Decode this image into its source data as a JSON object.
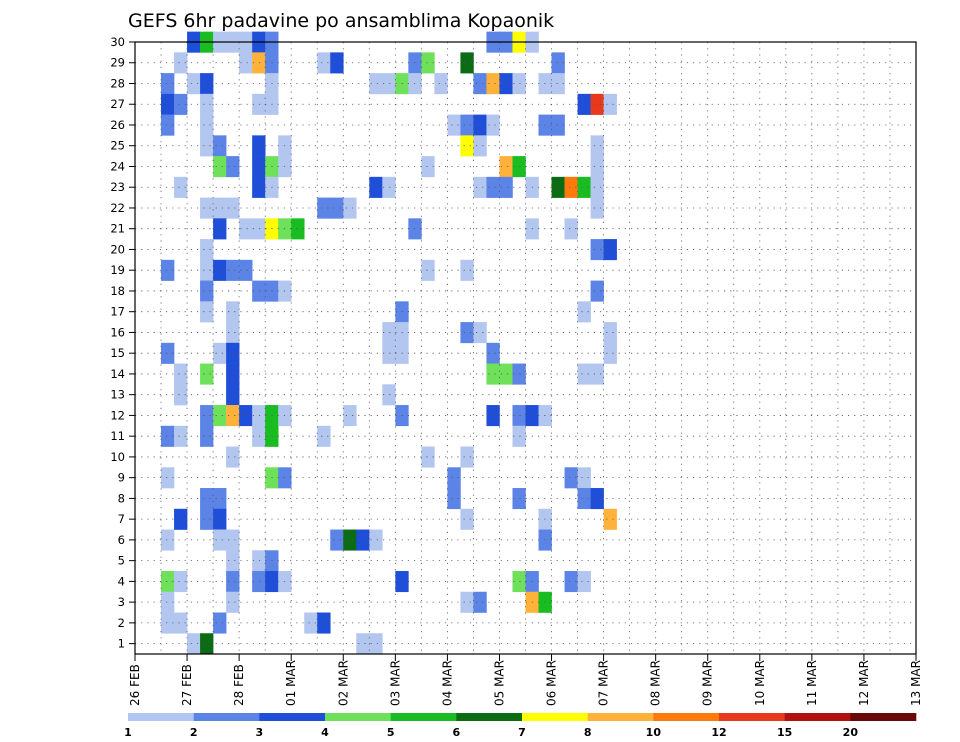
{
  "chart_data": {
    "type": "heatmap",
    "title": "GEFS 6hr padavine po ansamblima Kopaonik",
    "x_labels": [
      "26 FEB",
      "27 FEB",
      "28 FEB",
      "01 MAR",
      "02 MAR",
      "03 MAR",
      "04 MAR",
      "05 MAR",
      "06 MAR",
      "07 MAR",
      "08 MAR",
      "09 MAR",
      "10 MAR",
      "11 MAR",
      "12 MAR",
      "13 MAR"
    ],
    "y_range": [
      1,
      30
    ],
    "steps_per_day": 4,
    "grid": "dotted",
    "colorbar": {
      "labels": [
        "1",
        "2",
        "3",
        "4",
        "5",
        "6",
        "7",
        "8",
        "10",
        "12",
        "15",
        "20"
      ],
      "colors": [
        "#b3c6f0",
        "#5b84e6",
        "#1f4fd8",
        "#6fe05a",
        "#19bd22",
        "#0c6b15",
        "#ffff00",
        "#ffb23a",
        "#ff7a0a",
        "#e8391c",
        "#b01010",
        "#6b0808"
      ]
    },
    "cells": [
      [
        4,
        30,
        3
      ],
      [
        5,
        30,
        5
      ],
      [
        6,
        30,
        1
      ],
      [
        7,
        30,
        1
      ],
      [
        8,
        30,
        1
      ],
      [
        9,
        30,
        3
      ],
      [
        10,
        30,
        2
      ],
      [
        27,
        30,
        2
      ],
      [
        28,
        30,
        2
      ],
      [
        29,
        30,
        7
      ],
      [
        30,
        30,
        1
      ],
      [
        3,
        29,
        1
      ],
      [
        8,
        29,
        1
      ],
      [
        9,
        29,
        8
      ],
      [
        10,
        29,
        2
      ],
      [
        14,
        29,
        1
      ],
      [
        15,
        29,
        3
      ],
      [
        21,
        29,
        2
      ],
      [
        22,
        29,
        4
      ],
      [
        25,
        29,
        6
      ],
      [
        32,
        29,
        2
      ],
      [
        2,
        28,
        2
      ],
      [
        4,
        28,
        1
      ],
      [
        5,
        28,
        3
      ],
      [
        10,
        28,
        1
      ],
      [
        18,
        28,
        1
      ],
      [
        19,
        28,
        1
      ],
      [
        20,
        28,
        4
      ],
      [
        21,
        28,
        1
      ],
      [
        23,
        28,
        1
      ],
      [
        26,
        28,
        2
      ],
      [
        27,
        28,
        8
      ],
      [
        28,
        28,
        3
      ],
      [
        29,
        28,
        1
      ],
      [
        31,
        28,
        1
      ],
      [
        32,
        28,
        1
      ],
      [
        2,
        27,
        3
      ],
      [
        3,
        27,
        2
      ],
      [
        5,
        27,
        1
      ],
      [
        9,
        27,
        1
      ],
      [
        10,
        27,
        1
      ],
      [
        34,
        27,
        3
      ],
      [
        35,
        27,
        10
      ],
      [
        36,
        27,
        1
      ],
      [
        2,
        26,
        2
      ],
      [
        5,
        26,
        1
      ],
      [
        24,
        26,
        1
      ],
      [
        25,
        26,
        2
      ],
      [
        26,
        26,
        3
      ],
      [
        27,
        26,
        1
      ],
      [
        31,
        26,
        2
      ],
      [
        32,
        26,
        2
      ],
      [
        5,
        25,
        1
      ],
      [
        6,
        25,
        2
      ],
      [
        9,
        25,
        3
      ],
      [
        11,
        25,
        1
      ],
      [
        25,
        25,
        7
      ],
      [
        26,
        25,
        1
      ],
      [
        35,
        25,
        1
      ],
      [
        6,
        24,
        4
      ],
      [
        7,
        24,
        2
      ],
      [
        9,
        24,
        3
      ],
      [
        10,
        24,
        4
      ],
      [
        11,
        24,
        1
      ],
      [
        22,
        24,
        1
      ],
      [
        28,
        24,
        8
      ],
      [
        29,
        24,
        5
      ],
      [
        35,
        24,
        1
      ],
      [
        3,
        23,
        1
      ],
      [
        9,
        23,
        3
      ],
      [
        10,
        23,
        1
      ],
      [
        18,
        23,
        3
      ],
      [
        19,
        23,
        1
      ],
      [
        26,
        23,
        1
      ],
      [
        27,
        23,
        2
      ],
      [
        28,
        23,
        2
      ],
      [
        30,
        23,
        1
      ],
      [
        32,
        23,
        6
      ],
      [
        33,
        23,
        9
      ],
      [
        34,
        23,
        5
      ],
      [
        35,
        23,
        1
      ],
      [
        5,
        22,
        1
      ],
      [
        6,
        22,
        1
      ],
      [
        7,
        22,
        1
      ],
      [
        14,
        22,
        2
      ],
      [
        15,
        22,
        2
      ],
      [
        16,
        22,
        1
      ],
      [
        35,
        22,
        1
      ],
      [
        6,
        21,
        3
      ],
      [
        8,
        21,
        1
      ],
      [
        9,
        21,
        1
      ],
      [
        10,
        21,
        7
      ],
      [
        11,
        21,
        4
      ],
      [
        12,
        21,
        5
      ],
      [
        21,
        21,
        2
      ],
      [
        30,
        21,
        1
      ],
      [
        33,
        21,
        1
      ],
      [
        5,
        20,
        1
      ],
      [
        35,
        20,
        2
      ],
      [
        36,
        20,
        3
      ],
      [
        2,
        19,
        2
      ],
      [
        5,
        19,
        1
      ],
      [
        6,
        19,
        3
      ],
      [
        7,
        19,
        2
      ],
      [
        8,
        19,
        2
      ],
      [
        22,
        19,
        1
      ],
      [
        25,
        19,
        1
      ],
      [
        5,
        18,
        2
      ],
      [
        9,
        18,
        2
      ],
      [
        10,
        18,
        2
      ],
      [
        11,
        18,
        1
      ],
      [
        35,
        18,
        2
      ],
      [
        5,
        17,
        1
      ],
      [
        7,
        17,
        1
      ],
      [
        20,
        17,
        2
      ],
      [
        34,
        17,
        1
      ],
      [
        7,
        16,
        1
      ],
      [
        19,
        16,
        1
      ],
      [
        20,
        16,
        1
      ],
      [
        25,
        16,
        2
      ],
      [
        26,
        16,
        1
      ],
      [
        36,
        16,
        1
      ],
      [
        2,
        15,
        2
      ],
      [
        6,
        15,
        1
      ],
      [
        7,
        15,
        3
      ],
      [
        19,
        15,
        1
      ],
      [
        20,
        15,
        1
      ],
      [
        27,
        15,
        2
      ],
      [
        36,
        15,
        1
      ],
      [
        3,
        14,
        1
      ],
      [
        5,
        14,
        4
      ],
      [
        7,
        14,
        3
      ],
      [
        27,
        14,
        4
      ],
      [
        28,
        14,
        4
      ],
      [
        29,
        14,
        2
      ],
      [
        34,
        14,
        1
      ],
      [
        35,
        14,
        1
      ],
      [
        3,
        13,
        1
      ],
      [
        7,
        13,
        3
      ],
      [
        19,
        13,
        1
      ],
      [
        5,
        12,
        2
      ],
      [
        6,
        12,
        4
      ],
      [
        7,
        12,
        8
      ],
      [
        8,
        12,
        3
      ],
      [
        9,
        12,
        1
      ],
      [
        10,
        12,
        5
      ],
      [
        11,
        12,
        1
      ],
      [
        16,
        12,
        1
      ],
      [
        20,
        12,
        2
      ],
      [
        27,
        12,
        3
      ],
      [
        29,
        12,
        2
      ],
      [
        30,
        12,
        3
      ],
      [
        31,
        12,
        1
      ],
      [
        2,
        11,
        2
      ],
      [
        3,
        11,
        1
      ],
      [
        5,
        11,
        2
      ],
      [
        9,
        11,
        1
      ],
      [
        10,
        11,
        5
      ],
      [
        14,
        11,
        1
      ],
      [
        29,
        11,
        1
      ],
      [
        7,
        10,
        1
      ],
      [
        22,
        10,
        1
      ],
      [
        25,
        10,
        1
      ],
      [
        2,
        9,
        1
      ],
      [
        10,
        9,
        4
      ],
      [
        11,
        9,
        2
      ],
      [
        24,
        9,
        2
      ],
      [
        33,
        9,
        2
      ],
      [
        34,
        9,
        1
      ],
      [
        5,
        8,
        2
      ],
      [
        6,
        8,
        2
      ],
      [
        24,
        8,
        2
      ],
      [
        29,
        8,
        2
      ],
      [
        34,
        8,
        2
      ],
      [
        35,
        8,
        3
      ],
      [
        3,
        7,
        3
      ],
      [
        5,
        7,
        2
      ],
      [
        6,
        7,
        3
      ],
      [
        25,
        7,
        1
      ],
      [
        31,
        7,
        1
      ],
      [
        36,
        7,
        8
      ],
      [
        2,
        6,
        1
      ],
      [
        6,
        6,
        1
      ],
      [
        7,
        6,
        1
      ],
      [
        15,
        6,
        2
      ],
      [
        16,
        6,
        6
      ],
      [
        17,
        6,
        3
      ],
      [
        18,
        6,
        1
      ],
      [
        31,
        6,
        2
      ],
      [
        7,
        5,
        1
      ],
      [
        9,
        5,
        1
      ],
      [
        10,
        5,
        2
      ],
      [
        2,
        4,
        4
      ],
      [
        3,
        4,
        1
      ],
      [
        7,
        4,
        2
      ],
      [
        9,
        4,
        2
      ],
      [
        10,
        4,
        3
      ],
      [
        11,
        4,
        1
      ],
      [
        20,
        4,
        3
      ],
      [
        29,
        4,
        4
      ],
      [
        30,
        4,
        2
      ],
      [
        33,
        4,
        2
      ],
      [
        34,
        4,
        1
      ],
      [
        2,
        3,
        1
      ],
      [
        7,
        3,
        1
      ],
      [
        25,
        3,
        1
      ],
      [
        26,
        3,
        2
      ],
      [
        30,
        3,
        8
      ],
      [
        31,
        3,
        5
      ],
      [
        2,
        2,
        1
      ],
      [
        3,
        2,
        1
      ],
      [
        6,
        2,
        2
      ],
      [
        13,
        2,
        1
      ],
      [
        14,
        2,
        3
      ],
      [
        4,
        1,
        1
      ],
      [
        5,
        1,
        6
      ],
      [
        17,
        1,
        1
      ],
      [
        18,
        1,
        1
      ]
    ]
  }
}
